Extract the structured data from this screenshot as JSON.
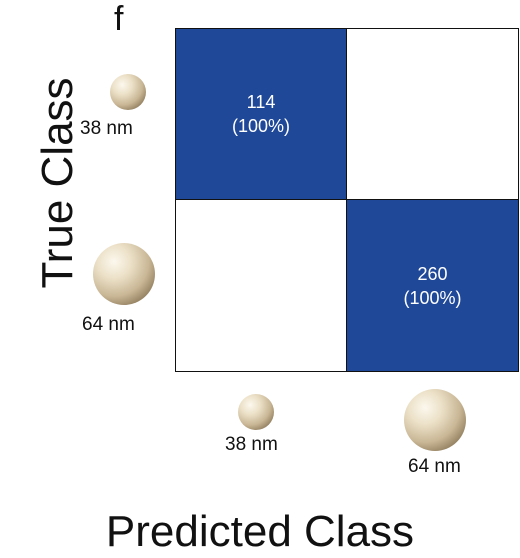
{
  "panel_label": "f",
  "axis": {
    "y_title": "True Class",
    "x_title": "Predicted Class"
  },
  "classes": {
    "row_small": "38 nm",
    "row_large": "64 nm",
    "col_small": "38 nm",
    "col_large": "64 nm"
  },
  "matrix": {
    "r0c0": {
      "count": "114",
      "pct": "(100%)"
    },
    "r0c1": {
      "count": "",
      "pct": ""
    },
    "r1c0": {
      "count": "",
      "pct": ""
    },
    "r1c1": {
      "count": "260",
      "pct": "(100%)"
    }
  },
  "colors": {
    "filled_cell": "#1f4899",
    "empty_cell": "#ffffff",
    "sphere_hint": "#d9ccb0"
  },
  "chart_data": {
    "type": "heatmap",
    "subtype": "confusion-matrix",
    "rows": [
      "38 nm",
      "64 nm"
    ],
    "columns": [
      "38 nm",
      "64 nm"
    ],
    "values": [
      [
        114,
        0
      ],
      [
        0,
        260
      ]
    ],
    "row_percent": [
      [
        100,
        0
      ],
      [
        0,
        100
      ]
    ],
    "ylabel": "True Class",
    "xlabel": "Predicted Class",
    "grid": true,
    "legend": "none"
  }
}
